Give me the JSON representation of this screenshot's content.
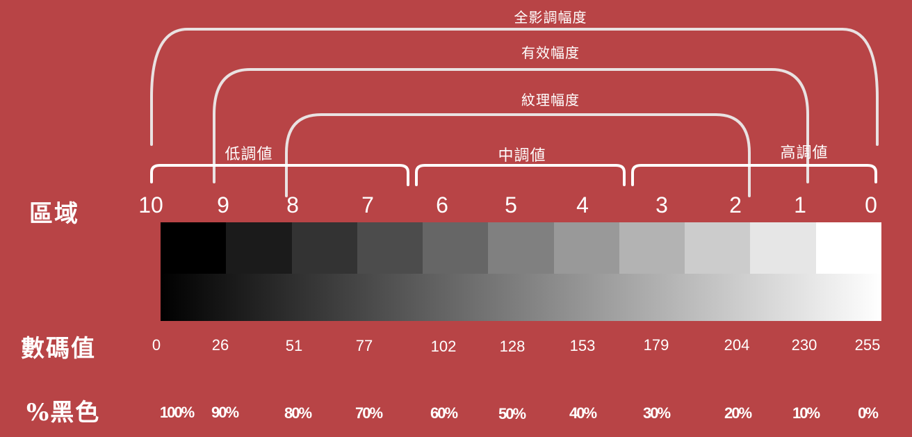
{
  "ranges": {
    "full": "全影調幅度",
    "effective": "有效幅度",
    "texture": "紋理幅度"
  },
  "groups": {
    "low": "低調値",
    "mid": "中調値",
    "high": "高調値"
  },
  "rows": {
    "zone": "區域",
    "digital": "數碼值",
    "black": "%黑色"
  },
  "zones": [
    "10",
    "9",
    "8",
    "7",
    "6",
    "5",
    "4",
    "3",
    "2",
    "1",
    "0"
  ],
  "digital_values": [
    "0",
    "26",
    "51",
    "77",
    "102",
    "128",
    "153",
    "179",
    "204",
    "230",
    "255"
  ],
  "black_percent": [
    "100%",
    "90%",
    "80%",
    "70%",
    "60%",
    "50%",
    "40%",
    "30%",
    "20%",
    "10%",
    "0%"
  ],
  "step_colors": [
    "#000000",
    "#1b1b1b",
    "#333333",
    "#4c4c4c",
    "#666666",
    "#808080",
    "#999999",
    "#b3b3b3",
    "#cccccc",
    "#e6e6e6",
    "#ffffff"
  ]
}
